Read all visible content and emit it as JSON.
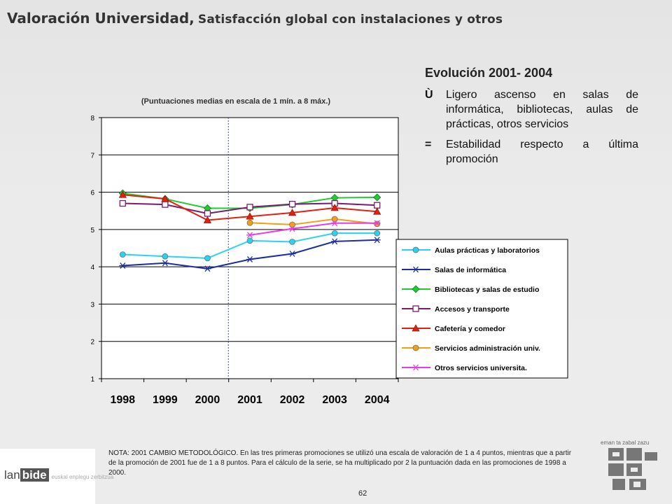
{
  "header": {
    "title_main": "Valoración Universidad,",
    "title_sub": "Satisfacción global con instalaciones y otros"
  },
  "summary": {
    "heading": "Evolución 2001- 2004",
    "items": [
      {
        "marker": "Ù",
        "text": "Ligero ascenso en salas de informática, bibliotecas, aulas de prácticas, otros servicios"
      },
      {
        "marker": "=",
        "text": "Estabilidad respecto a última promoción"
      }
    ]
  },
  "note": "NOTA: 2001 CAMBIO METODOLÓGICO. En las tres primeras promociones se utilizó una escala de valoración de 1 a 4 puntos, mientras que a partir de la promoción de 2001 fue de 1 a 8 puntos. Para el cálculo de la serie, se ha multiplicado por 2 la puntuación dada en las promociones de 1998 a 2000.",
  "page_number": "62",
  "logo": {
    "prefix": "lan",
    "bold": "bide",
    "sub": "euskal enplegu zerbitzua"
  },
  "gov_logo": {
    "caption": "eman ta zabal zazu",
    "icon": "university-emblem-icon"
  },
  "colors": {
    "aulas": "#29d3f0",
    "salas": "#1c2ea0",
    "bibliotecas": "#1fcc2f",
    "accesos": "#7a1c6e",
    "cafeteria": "#e3200f",
    "servicios_admin": "#f0a010",
    "otros": "#e63ce6"
  },
  "chart_data": {
    "type": "line",
    "title": "(Puntuaciones medias en escala de 1 mín. a 8 máx.)",
    "xlabel": "",
    "ylabel": "",
    "x": [
      "1998",
      "1999",
      "2000",
      "2001",
      "2002",
      "2003",
      "2004"
    ],
    "ylim": [
      1,
      8
    ],
    "yticks": [
      "1",
      "2",
      "3",
      "4",
      "5",
      "6",
      "7",
      "8"
    ],
    "grid": "horizontal",
    "legend_position": "right",
    "annotations": [
      "vertical dotted line at 2001 (methodology change)"
    ],
    "series": [
      {
        "name": "Aulas prácticas y laboratorios",
        "color_key": "aulas",
        "marker": "circle",
        "values": [
          4.33,
          4.28,
          4.23,
          4.7,
          4.67,
          4.9,
          4.9
        ]
      },
      {
        "name": "Salas de informática",
        "color_key": "salas",
        "marker": "asterisk",
        "values": [
          4.03,
          4.1,
          3.95,
          4.2,
          4.35,
          4.68,
          4.72
        ]
      },
      {
        "name": "Bibliotecas y salas de estudio",
        "color_key": "bibliotecas",
        "marker": "diamond",
        "values": [
          5.97,
          5.82,
          5.57,
          5.57,
          5.67,
          5.85,
          5.86
        ]
      },
      {
        "name": "Accesos y transporte",
        "color_key": "accesos",
        "marker": "square",
        "values": [
          5.7,
          5.67,
          5.43,
          5.6,
          5.68,
          5.7,
          5.65
        ]
      },
      {
        "name": "Cafetería y comedor",
        "color_key": "cafeteria",
        "marker": "triangle",
        "values": [
          5.93,
          5.82,
          5.25,
          5.35,
          5.45,
          5.58,
          5.48
        ]
      },
      {
        "name": "Servicios administración univ.",
        "color_key": "servicios_admin",
        "marker": "circle",
        "values": [
          null,
          null,
          null,
          5.18,
          5.13,
          5.28,
          5.15
        ]
      },
      {
        "name": "Otros servicios universita.",
        "color_key": "otros",
        "marker": "asterisk",
        "values": [
          null,
          null,
          null,
          4.85,
          5.02,
          5.17,
          5.17
        ]
      }
    ]
  }
}
